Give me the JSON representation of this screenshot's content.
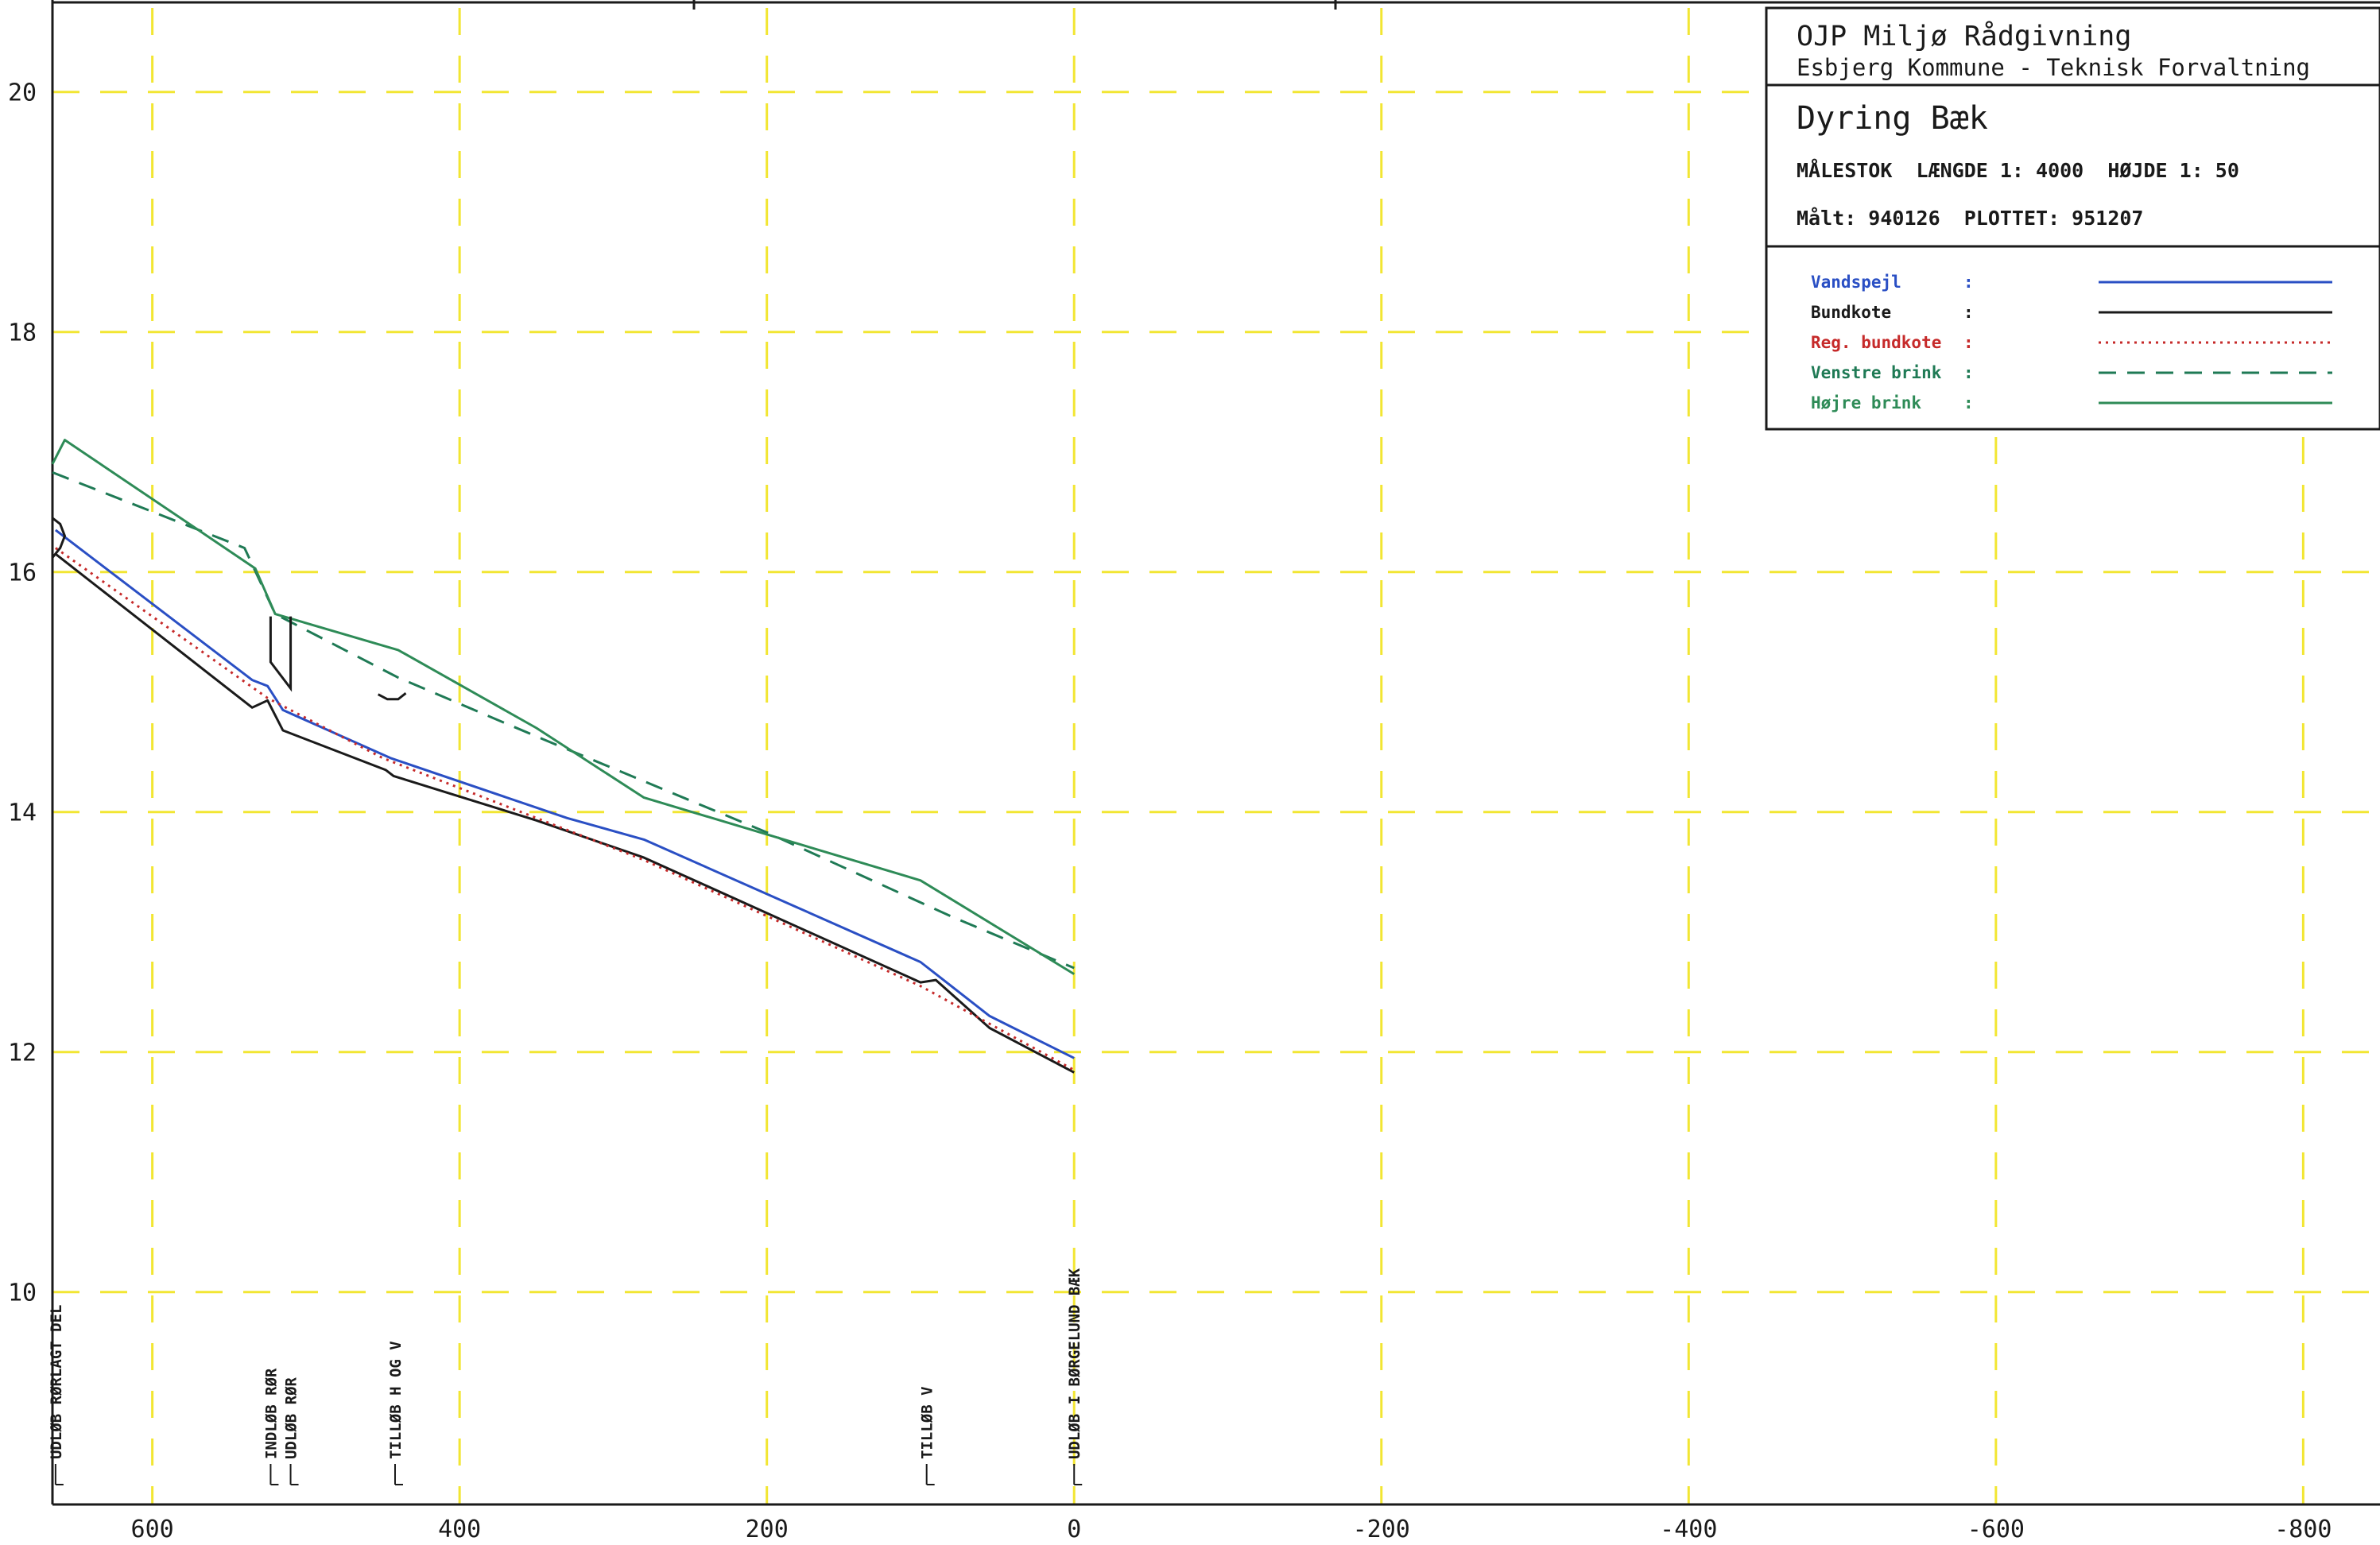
{
  "title_block": {
    "company": "OJP Miljø Rådgivning",
    "client": "Esbjerg Kommune - Teknisk Forvaltning",
    "title": "Dyring Bæk",
    "scale_line": "MÅLESTOK  LÆNGDE 1: 4000  HØJDE 1: 50",
    "dates_line": "Målt: 940126  PLOTTET: 951207"
  },
  "legend": [
    {
      "label": "Vandspejl",
      "sep": ":",
      "color": "#2a4fc4",
      "dash": "solid"
    },
    {
      "label": "Bundkote",
      "sep": ":",
      "color": "#1a1a1a",
      "dash": "solid"
    },
    {
      "label": "Reg. bundkote",
      "sep": ":",
      "color": "#c62a2a",
      "dash": "dotted"
    },
    {
      "label": "Venstre brink",
      "sep": ":",
      "color": "#1f7a55",
      "dash": "dashed"
    },
    {
      "label": "Højre brink",
      "sep": ":",
      "color": "#2e8b57",
      "dash": "solid"
    }
  ],
  "chart_data": {
    "type": "line",
    "title": "Dyring Bæk",
    "xlabel": "",
    "ylabel": "",
    "xlim": [
      665,
      -850
    ],
    "ylim": [
      8.23,
      20.7
    ],
    "x_ticks": [
      600,
      400,
      200,
      0,
      -200,
      -400,
      -600,
      -800
    ],
    "x_tick_labels": [
      "600",
      "400",
      "200",
      "0",
      "-200",
      "-400",
      "-600",
      "-800"
    ],
    "y_ticks": [
      10,
      12,
      14,
      16,
      18,
      20
    ],
    "y_tick_labels": [
      "10",
      "12",
      "14",
      "16",
      "18",
      "20"
    ],
    "grid": true,
    "legend_position": "top-right",
    "series": [
      {
        "name": "Vandspejl",
        "color": "#2a4fc4",
        "dash": "solid",
        "points": [
          [
            663,
            16.35
          ],
          [
            535,
            15.1
          ],
          [
            525,
            15.05
          ],
          [
            515,
            14.85
          ],
          [
            445,
            14.45
          ],
          [
            330,
            13.95
          ],
          [
            280,
            13.77
          ],
          [
            100,
            12.75
          ],
          [
            90,
            12.65
          ],
          [
            55,
            12.3
          ],
          [
            0,
            11.95
          ]
        ]
      },
      {
        "name": "Bundkote",
        "color": "#1a1a1a",
        "dash": "solid",
        "points": [
          [
            663,
            16.15
          ],
          [
            535,
            14.87
          ],
          [
            525,
            14.93
          ],
          [
            515,
            14.68
          ],
          [
            448,
            14.35
          ],
          [
            443,
            14.3
          ],
          [
            350,
            13.93
          ],
          [
            280,
            13.62
          ],
          [
            100,
            12.58
          ],
          [
            90,
            12.6
          ],
          [
            55,
            12.2
          ],
          [
            0,
            11.83
          ]
        ]
      },
      {
        "name": "Reg. bundkote",
        "color": "#c62a2a",
        "dash": "dotted",
        "points": [
          [
            663,
            16.2
          ],
          [
            525,
            14.95
          ],
          [
            450,
            14.45
          ],
          [
            280,
            13.6
          ],
          [
            100,
            12.55
          ],
          [
            0,
            11.85
          ]
        ]
      },
      {
        "name": "Venstre brink",
        "color": "#1f7a55",
        "dash": "dashed",
        "points": [
          [
            665,
            16.83
          ],
          [
            540,
            16.2
          ],
          [
            520,
            15.65
          ],
          [
            440,
            15.12
          ],
          [
            350,
            14.63
          ],
          [
            200,
            13.83
          ],
          [
            80,
            13.13
          ],
          [
            0,
            12.7
          ]
        ]
      },
      {
        "name": "Højre brink",
        "color": "#2e8b57",
        "dash": "solid",
        "points": [
          [
            665,
            16.9
          ],
          [
            657,
            17.1
          ],
          [
            533,
            16.03
          ],
          [
            520,
            15.65
          ],
          [
            440,
            15.35
          ],
          [
            350,
            14.7
          ],
          [
            280,
            14.12
          ],
          [
            100,
            13.43
          ],
          [
            0,
            12.65
          ]
        ]
      }
    ],
    "structures": [
      {
        "name": "culvert-profile",
        "color": "#1a1a1a",
        "points": [
          [
            665,
            16.45
          ],
          [
            660,
            16.4
          ],
          [
            657,
            16.3
          ],
          [
            660,
            16.2
          ],
          [
            665,
            16.12
          ]
        ]
      },
      {
        "name": "pipe-outlet-profile",
        "color": "#1a1a1a",
        "points": [
          [
            523,
            15.63
          ],
          [
            523,
            15.25
          ],
          [
            510,
            15.03
          ],
          [
            510,
            15.63
          ]
        ]
      },
      {
        "name": "bed-dip-profile",
        "color": "#1a1a1a",
        "points": [
          [
            453,
            14.98
          ],
          [
            447,
            14.94
          ],
          [
            440,
            14.94
          ],
          [
            435,
            14.99
          ]
        ]
      }
    ],
    "stations": [
      {
        "x": 663,
        "label": "UDLØB RØRLAGT DEL"
      },
      {
        "x": 523,
        "label": "INDLØB RØR"
      },
      {
        "x": 510,
        "label": "UDLØB RØR"
      },
      {
        "x": 442,
        "label": "TILLØB H OG V"
      },
      {
        "x": 96,
        "label": "TILLØB V"
      },
      {
        "x": 0,
        "label": "UDLØB I BØRGELUND BÆK"
      }
    ]
  }
}
